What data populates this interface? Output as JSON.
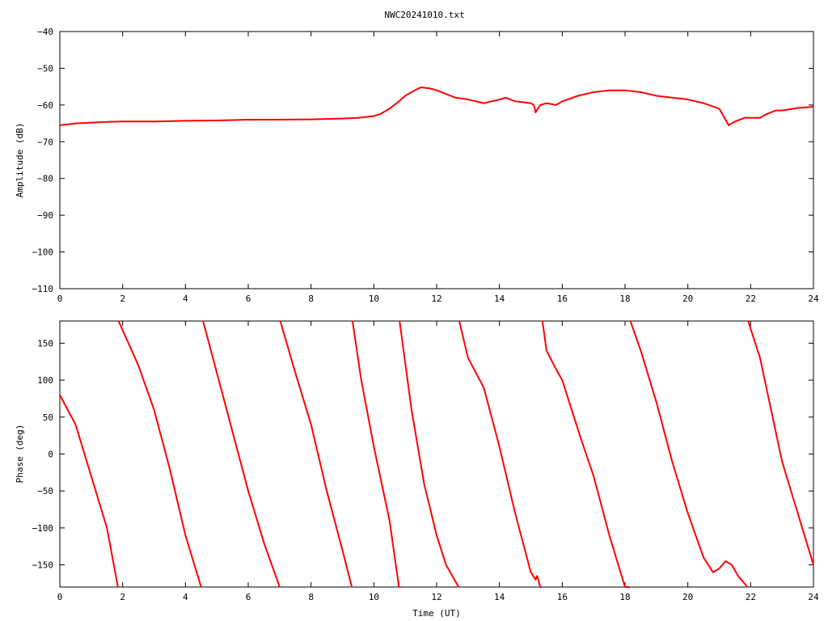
{
  "title": "NWC20241010.txt",
  "series_color": "#ff0000",
  "chart_data": [
    {
      "type": "line",
      "panel": "top",
      "xlabel": "",
      "ylabel": "Amplitude (dB)",
      "xlim": [
        0,
        24
      ],
      "ylim": [
        -110,
        -40
      ],
      "xticks": [
        0,
        2,
        4,
        6,
        8,
        10,
        12,
        14,
        16,
        18,
        20,
        22,
        24
      ],
      "yticks": [
        -110,
        -100,
        -90,
        -80,
        -70,
        -60,
        -50,
        -40
      ],
      "series": [
        {
          "x": [
            0,
            0.5,
            1,
            1.5,
            2,
            3,
            4,
            5,
            6,
            7,
            8,
            9,
            9.5,
            10,
            10.2,
            10.5,
            10.8,
            11,
            11.3,
            11.5,
            11.8,
            12,
            12.3,
            12.6,
            13,
            13.5,
            14,
            14.2,
            14.5,
            15,
            15.1,
            15.15,
            15.3,
            15.5,
            15.8,
            16,
            16.5,
            17,
            17.5,
            18,
            18.5,
            19,
            19.5,
            20,
            20.5,
            21,
            21.2,
            21.3,
            21.5,
            21.8,
            22,
            22.3,
            22.5,
            22.8,
            23,
            23.5,
            24
          ],
          "y": [
            -65.5,
            -65,
            -64.8,
            -64.6,
            -64.5,
            -64.5,
            -64.3,
            -64.2,
            -64,
            -64,
            -63.9,
            -63.7,
            -63.5,
            -63,
            -62.5,
            -61,
            -59,
            -57.5,
            -56,
            -55.2,
            -55.5,
            -56,
            -57,
            -58,
            -58.5,
            -59.5,
            -58.5,
            -58,
            -59,
            -59.5,
            -60,
            -62,
            -60,
            -59.5,
            -60,
            -59,
            -57.5,
            -56.5,
            -56,
            -56,
            -56.5,
            -57.5,
            -58,
            -58.5,
            -59.5,
            -61,
            -64,
            -65.5,
            -64.5,
            -63.5,
            -63.5,
            -63.5,
            -62.5,
            -61.5,
            -61.5,
            -60.8,
            -60.5
          ]
        }
      ]
    },
    {
      "type": "line",
      "panel": "bottom",
      "xlabel": "Time (UT)",
      "ylabel": "Phase (deg)",
      "xlim": [
        0,
        24
      ],
      "ylim": [
        -180,
        180
      ],
      "xticks": [
        0,
        2,
        4,
        6,
        8,
        10,
        12,
        14,
        16,
        18,
        20,
        22,
        24
      ],
      "yticks": [
        -150,
        -100,
        -50,
        0,
        50,
        100,
        150
      ],
      "series": [
        {
          "x": [
            0,
            0.5,
            1,
            1.5,
            1.85,
            1.86,
            1.87,
            2.5,
            3,
            3.5,
            4,
            4.5,
            4.55,
            4.56,
            5,
            5.5,
            6,
            6.5,
            7,
            7.01,
            7.02,
            7.5,
            8,
            8.5,
            9,
            9.3,
            9.31,
            9.32,
            9.6,
            10,
            10.5,
            10.8,
            10.81,
            10.82,
            11.2,
            11.6,
            12,
            12.3,
            12.7,
            12.71,
            12.72,
            13,
            13.5,
            14,
            14.5,
            15,
            15.15,
            15.2,
            15.3,
            15.35,
            15.36,
            15.37,
            15.5,
            15.8,
            16,
            16.3,
            16.6,
            17,
            17.5,
            18,
            18.15,
            18.16,
            18.17,
            18.5,
            19,
            19.5,
            20,
            20.5,
            20.8,
            21,
            21.2,
            21.4,
            21.6,
            21.9,
            21.91,
            21.92,
            22.3,
            22.6,
            23,
            23.5,
            24
          ],
          "y": [
            80,
            40,
            -30,
            -100,
            -180,
            null,
            180,
            120,
            60,
            -20,
            -110,
            -180,
            null,
            180,
            110,
            30,
            -50,
            -120,
            -180,
            null,
            180,
            110,
            40,
            -50,
            -130,
            -180,
            null,
            180,
            100,
            10,
            -90,
            -180,
            null,
            180,
            60,
            -40,
            -110,
            -150,
            -180,
            null,
            180,
            130,
            90,
            10,
            -80,
            -160,
            -170,
            -165,
            -180,
            -180,
            null,
            180,
            140,
            115,
            100,
            60,
            20,
            -30,
            -110,
            -180,
            -180,
            null,
            180,
            140,
            70,
            -10,
            -80,
            -140,
            -160,
            -155,
            -145,
            -150,
            -165,
            -180,
            null,
            180,
            130,
            70,
            -10,
            -80,
            -150
          ]
        }
      ]
    }
  ]
}
